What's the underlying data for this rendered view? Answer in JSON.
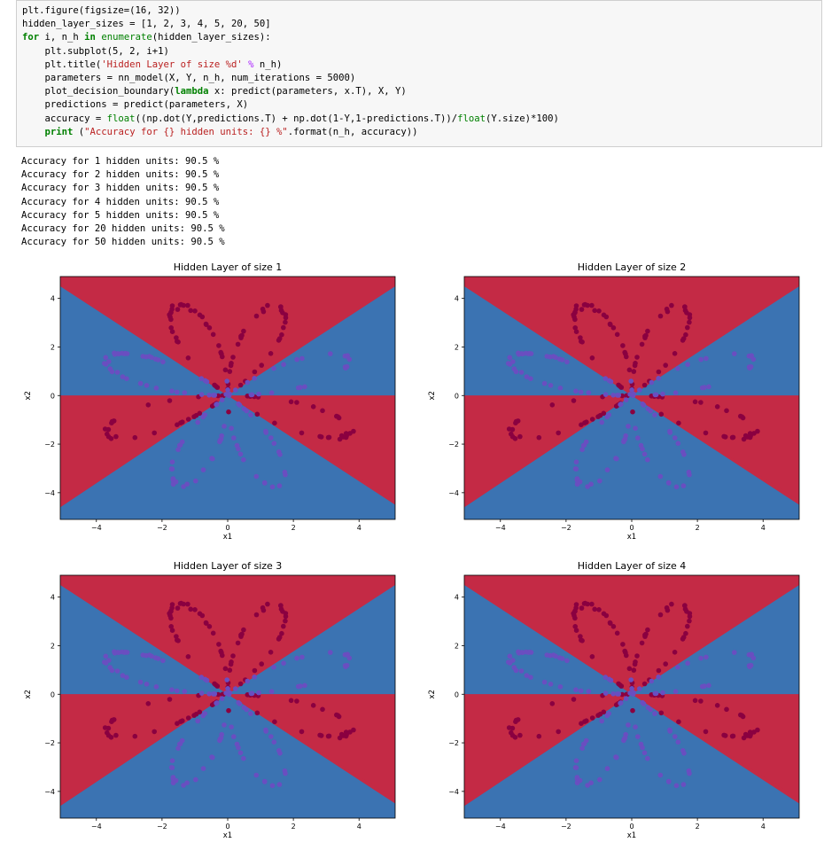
{
  "code_cell": {
    "lines": [
      [
        {
          "t": "plt.figure(figsize=(16, 32))"
        }
      ],
      [
        {
          "t": "hidden_layer_sizes = [1, 2, 3, 4, 5, 20, 50]"
        }
      ],
      [
        {
          "t": "for",
          "c": "kw"
        },
        {
          "t": " i, n_h "
        },
        {
          "t": "in",
          "c": "kw"
        },
        {
          "t": " "
        },
        {
          "t": "enumerate",
          "c": "num"
        },
        {
          "t": "(hidden_layer_sizes):"
        }
      ],
      [
        {
          "t": "    plt.subplot(5, 2, i+1)"
        }
      ],
      [
        {
          "t": "    plt.title("
        },
        {
          "t": "'Hidden Layer of size %d'",
          "c": "str"
        },
        {
          "t": " "
        },
        {
          "t": "%",
          "c": "op"
        },
        {
          "t": " n_h)"
        }
      ],
      [
        {
          "t": "    parameters = nn_model(X, Y, n_h, num_iterations = 5000)"
        }
      ],
      [
        {
          "t": "    plot_decision_boundary("
        },
        {
          "t": "lambda",
          "c": "kw"
        },
        {
          "t": " x: predict(parameters, x.T), X, Y)"
        }
      ],
      [
        {
          "t": "    predictions = predict(parameters, X)"
        }
      ],
      [
        {
          "t": "    accuracy = "
        },
        {
          "t": "float",
          "c": "num"
        },
        {
          "t": "((np.dot(Y,predictions.T) + np.dot(1-Y,1-predictions.T))/"
        },
        {
          "t": "float",
          "c": "num"
        },
        {
          "t": "(Y.size)*100)"
        }
      ],
      [
        {
          "t": "    "
        },
        {
          "t": "print",
          "c": "kw"
        },
        {
          "t": " ("
        },
        {
          "t": "\"Accuracy for {} hidden units: {} %\"",
          "c": "str"
        },
        {
          "t": ".format(n_h, accuracy))"
        }
      ]
    ]
  },
  "output": {
    "lines": [
      "Accuracy for 1 hidden units: 90.5 %",
      "Accuracy for 2 hidden units: 90.5 %",
      "Accuracy for 3 hidden units: 90.5 %",
      "Accuracy for 4 hidden units: 90.5 %",
      "Accuracy for 5 hidden units: 90.5 %",
      "Accuracy for 20 hidden units: 90.5 %",
      "Accuracy for 50 hidden units: 90.5 %"
    ]
  },
  "colors": {
    "red_region": "#c42a45",
    "blue_region": "#3b73b2",
    "red_point": "#8a0040",
    "blue_point": "#6a4ec0"
  },
  "chart_data": [
    {
      "type": "scatter",
      "title": "Hidden Layer of size 1",
      "xlabel": "x1",
      "ylabel": "x2",
      "xlim": [
        -5.1,
        5.1
      ],
      "ylim": [
        -5.1,
        4.9
      ],
      "xticks": [
        "−4",
        "−2",
        "0",
        "2",
        "4"
      ],
      "yticks": [
        "4",
        "2",
        "0",
        "−2",
        "−4"
      ],
      "grid": false,
      "legend": "none"
    },
    {
      "type": "scatter",
      "title": "Hidden Layer of size 2",
      "xlabel": "x1",
      "ylabel": "x2",
      "xlim": [
        -5.1,
        5.1
      ],
      "ylim": [
        -5.1,
        4.9
      ],
      "xticks": [
        "−4",
        "−2",
        "0",
        "2",
        "4"
      ],
      "yticks": [
        "4",
        "2",
        "0",
        "−2",
        "−4"
      ],
      "grid": false,
      "legend": "none"
    },
    {
      "type": "scatter",
      "title": "Hidden Layer of size 3",
      "xlabel": "x1",
      "ylabel": "x2",
      "xlim": [
        -5.1,
        5.1
      ],
      "ylim": [
        -5.1,
        4.9
      ],
      "xticks": [
        "−4",
        "−2",
        "0",
        "2",
        "4"
      ],
      "yticks": [
        "4",
        "2",
        "0",
        "−2",
        "−4"
      ],
      "grid": false,
      "legend": "none"
    },
    {
      "type": "scatter",
      "title": "Hidden Layer of size 4",
      "xlabel": "x1",
      "ylabel": "x2",
      "xlim": [
        -5.1,
        5.1
      ],
      "ylim": [
        -5.1,
        4.9
      ],
      "xticks": [
        "−4",
        "−2",
        "0",
        "2",
        "4"
      ],
      "yticks": [
        "4",
        "2",
        "0",
        "−2",
        "−4"
      ],
      "grid": false,
      "legend": "none"
    }
  ]
}
